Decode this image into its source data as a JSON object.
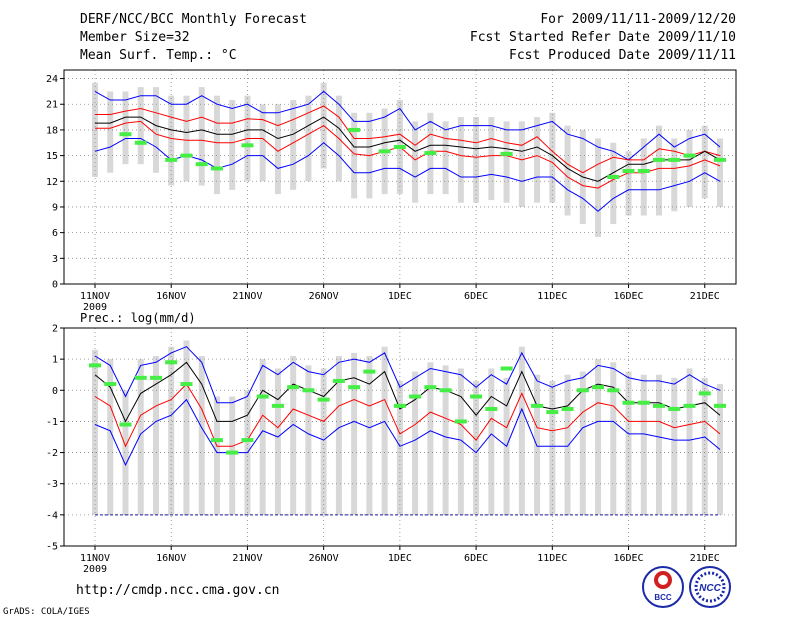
{
  "header": {
    "title": "DERF/NCC/BCC Monthly Forecast",
    "member_size": "Member Size=32",
    "variable": "Mean Surf. Temp.: °C",
    "period": "For 2009/11/11-2009/12/20",
    "fcst_started": "Fcst Started Refer Date 2009/11/10",
    "fcst_produced": "Fcst Produced Date 2009/11/11"
  },
  "footer": {
    "url": "http://cmdp.ncc.cma.gov.cn",
    "grads": "GrADS: COLA/IGES",
    "logo_bcc": "BCC",
    "logo_ncc": "NCC"
  },
  "colors": {
    "envelope": "#0000ff",
    "spread": "#ff0000",
    "mean": "#000000",
    "observed": "#44ee44",
    "bars": "#d8d8d8",
    "grid": "#888888"
  },
  "chart_data": [
    {
      "type": "line",
      "title": "Mean Surf. Temp.: °C",
      "ylim": [
        0,
        25
      ],
      "yticks": [
        "0",
        "3",
        "6",
        "9",
        "12",
        "15",
        "18",
        "21",
        "24"
      ],
      "xticks": [
        "11NOV",
        "16NOV",
        "21NOV",
        "26NOV",
        "1DEC",
        "6DEC",
        "11DEC",
        "16DEC",
        "21DEC"
      ],
      "xtick_year": "2009",
      "series": [
        {
          "name": "ensemble max",
          "values": [
            22.5,
            21.5,
            21.5,
            22,
            22,
            21,
            21,
            22,
            21,
            20.5,
            21,
            20,
            20,
            20.5,
            21,
            22.5,
            21,
            19,
            19,
            19.5,
            20.5,
            18,
            19,
            18,
            18.5,
            18.5,
            18.5,
            18,
            18,
            18.5,
            19,
            17.5,
            17,
            16,
            15.5,
            14.5,
            16,
            17.5,
            16,
            17,
            17.5,
            16
          ]
        },
        {
          "name": "spread upper",
          "values": [
            19.8,
            19.8,
            20.2,
            20.5,
            20,
            19.5,
            19,
            19.5,
            18.8,
            18.8,
            19.3,
            19.2,
            18.5,
            19.2,
            20,
            20.8,
            19.5,
            17,
            17,
            17.2,
            17.5,
            16.2,
            17.5,
            17,
            16.8,
            16.5,
            17,
            16.5,
            16.2,
            17.2,
            15.5,
            14,
            13,
            14,
            14.8,
            14.5,
            14.5,
            15.8,
            15.5,
            15,
            15.5,
            15
          ]
        },
        {
          "name": "ensemble mean",
          "values": [
            18.8,
            18.8,
            19.5,
            19.5,
            18.5,
            18,
            17.7,
            18,
            17.5,
            17.5,
            18,
            18,
            17,
            17.5,
            18.5,
            19.5,
            18.2,
            16,
            16,
            16.5,
            16.8,
            15.5,
            16.2,
            16.2,
            16,
            15.8,
            16,
            15.8,
            15.5,
            16,
            15,
            13.5,
            12.5,
            12,
            13,
            14,
            14,
            14.5,
            14.5,
            14.5,
            15.5,
            14.5
          ]
        },
        {
          "name": "spread lower",
          "values": [
            18.2,
            18.2,
            18.8,
            19,
            17.5,
            17,
            16.8,
            16.8,
            16.5,
            16.5,
            17,
            17,
            15.5,
            16.5,
            17.5,
            18.5,
            17,
            15.2,
            15,
            15.5,
            16,
            14.5,
            15.5,
            15.5,
            15,
            14.8,
            15,
            15,
            14.5,
            15,
            14.2,
            12.5,
            11.5,
            11.2,
            12.2,
            13,
            13,
            13.5,
            13.5,
            13.8,
            14.5,
            13.8
          ]
        },
        {
          "name": "ensemble min",
          "values": [
            15.5,
            16,
            17,
            17,
            16,
            14.5,
            15,
            14.5,
            13.5,
            14,
            15,
            15,
            13.5,
            14,
            15,
            16.5,
            15,
            13,
            13,
            13.5,
            13.5,
            12.5,
            13.5,
            13.5,
            12.5,
            12.5,
            12.8,
            12.5,
            12,
            12.5,
            12.5,
            11,
            10,
            8.5,
            10,
            11,
            11,
            11,
            11.5,
            12,
            13,
            12
          ]
        },
        {
          "name": "observed",
          "values": [
            null,
            null,
            17.5,
            16.5,
            null,
            14.5,
            15,
            14,
            13.5,
            null,
            16.2,
            null,
            null,
            null,
            null,
            null,
            null,
            18,
            null,
            15.5,
            16,
            null,
            15.3,
            null,
            null,
            null,
            null,
            15.2,
            null,
            null,
            null,
            null,
            null,
            null,
            12.5,
            13.2,
            13.2,
            14.5,
            14.5,
            15,
            null,
            14.5
          ]
        }
      ]
    },
    {
      "type": "line",
      "title": "Prec.: log(mm/d)",
      "ylim": [
        -5,
        2
      ],
      "yticks": [
        "-5",
        "-4",
        "-3",
        "-2",
        "-1",
        "0",
        "1",
        "2"
      ],
      "xticks": [
        "11NOV",
        "16NOV",
        "21NOV",
        "26NOV",
        "1DEC",
        "6DEC",
        "11DEC",
        "16DEC",
        "21DEC"
      ],
      "xtick_year": "2009",
      "series": [
        {
          "name": "ensemble max",
          "values": [
            1.1,
            0.8,
            -0.2,
            0.8,
            0.9,
            1.2,
            1.4,
            0.9,
            -0.4,
            -0.4,
            -0.2,
            0.8,
            0.5,
            0.9,
            0.6,
            0.5,
            0.9,
            1.0,
            0.9,
            1.2,
            0.1,
            0.4,
            0.7,
            0.6,
            0.5,
            0.1,
            0.5,
            0.2,
            1.2,
            0.3,
            0.1,
            0.3,
            0.4,
            0.8,
            0.7,
            0.4,
            0.3,
            0.3,
            0.2,
            0.5,
            0.2,
            0.0
          ]
        },
        {
          "name": "ensemble mean",
          "values": [
            0.5,
            0.1,
            -1.0,
            -0.1,
            0.2,
            0.5,
            0.9,
            0.2,
            -1.0,
            -1.0,
            -0.8,
            0.0,
            -0.3,
            0.2,
            0.0,
            -0.2,
            0.3,
            0.4,
            0.2,
            0.6,
            -0.6,
            -0.3,
            0.1,
            0.0,
            -0.2,
            -0.8,
            -0.2,
            -0.5,
            0.6,
            -0.5,
            -0.6,
            -0.5,
            0.0,
            0.2,
            0.1,
            -0.4,
            -0.4,
            -0.4,
            -0.6,
            -0.5,
            -0.4,
            -0.8
          ]
        },
        {
          "name": "spread lower",
          "values": [
            -0.2,
            -0.5,
            -1.8,
            -0.8,
            -0.5,
            -0.3,
            0.2,
            -0.6,
            -1.8,
            -1.8,
            -1.6,
            -0.8,
            -1.2,
            -0.6,
            -0.8,
            -1.0,
            -0.5,
            -0.3,
            -0.5,
            -0.3,
            -1.4,
            -1.1,
            -0.7,
            -0.9,
            -1.1,
            -1.6,
            -0.9,
            -1.2,
            -0.1,
            -1.2,
            -1.3,
            -1.2,
            -0.7,
            -0.4,
            -0.5,
            -1.0,
            -1.0,
            -1.0,
            -1.2,
            -1.1,
            -1.0,
            -1.4
          ]
        },
        {
          "name": "ensemble min",
          "values": [
            -1.1,
            -1.3,
            -2.4,
            -1.4,
            -1.0,
            -0.8,
            -0.3,
            -1.2,
            -2.0,
            -2.0,
            -2.0,
            -1.3,
            -1.5,
            -1.1,
            -1.4,
            -1.6,
            -1.2,
            -1.0,
            -1.2,
            -1.0,
            -1.8,
            -1.6,
            -1.3,
            -1.5,
            -1.6,
            -2.0,
            -1.4,
            -1.8,
            -0.6,
            -1.8,
            -1.8,
            -1.8,
            -1.2,
            -1.0,
            -1.0,
            -1.4,
            -1.4,
            -1.5,
            -1.6,
            -1.6,
            -1.5,
            -1.9
          ]
        },
        {
          "name": "observed",
          "values": [
            0.8,
            0.2,
            -1.1,
            0.4,
            0.4,
            0.9,
            0.2,
            null,
            -1.6,
            -2.0,
            -1.6,
            -0.2,
            -0.5,
            0.1,
            0.0,
            -0.3,
            0.3,
            0.1,
            0.6,
            null,
            -0.5,
            -0.2,
            0.1,
            0.0,
            -1.0,
            -0.2,
            -0.6,
            0.7,
            null,
            -0.5,
            -0.7,
            -0.6,
            0.0,
            0.1,
            0.0,
            -0.4,
            -0.4,
            -0.5,
            -0.6,
            -0.5,
            -0.1,
            -0.5
          ]
        }
      ],
      "prec_label": "Prec.: log(mm/d)"
    }
  ]
}
